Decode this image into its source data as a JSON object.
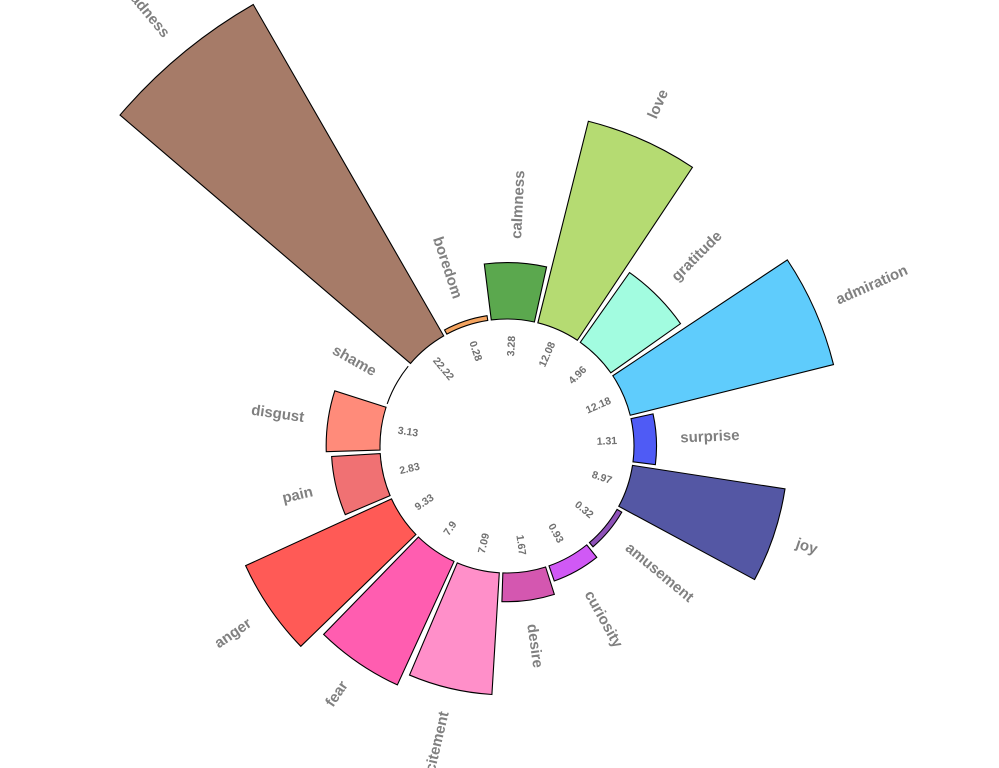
{
  "chart_data": {
    "type": "bar",
    "layout": "radial",
    "title": "",
    "categories": [
      "boredom",
      "calmness",
      "love",
      "gratitude",
      "admiration",
      "surprise",
      "joy",
      "amusement",
      "curiosity",
      "desire",
      "excitement",
      "fear",
      "anger",
      "pain",
      "disgust",
      "shame",
      "sadness"
    ],
    "values": [
      0.28,
      3.28,
      12.08,
      4.96,
      12.18,
      1.31,
      8.97,
      0.32,
      0.93,
      1.67,
      7.09,
      7.9,
      9.33,
      2.83,
      3.13,
      0.0,
      22.22
    ],
    "value_labels": [
      "0.28",
      "3.28",
      "12.08",
      "4.96",
      "12.18",
      "1.31",
      "8.97",
      "0.32",
      "0.93",
      "1.67",
      "7.09",
      "7.9",
      "9.33",
      "2.83",
      "3.13",
      "",
      "22.22"
    ],
    "colors": [
      "#F4A460",
      "#5BA84E",
      "#B5DB72",
      "#A2FCE0",
      "#5FCCFC",
      "#4F5BF5",
      "#5457A4",
      "#8E52B8",
      "#D059F5",
      "#D457B0",
      "#FF8FC9",
      "#FF5DB0",
      "#FF5A56",
      "#F07173",
      "#FF8B7A",
      "#FFA0A0",
      "#A67B68"
    ],
    "legend": "none",
    "grid": false
  }
}
